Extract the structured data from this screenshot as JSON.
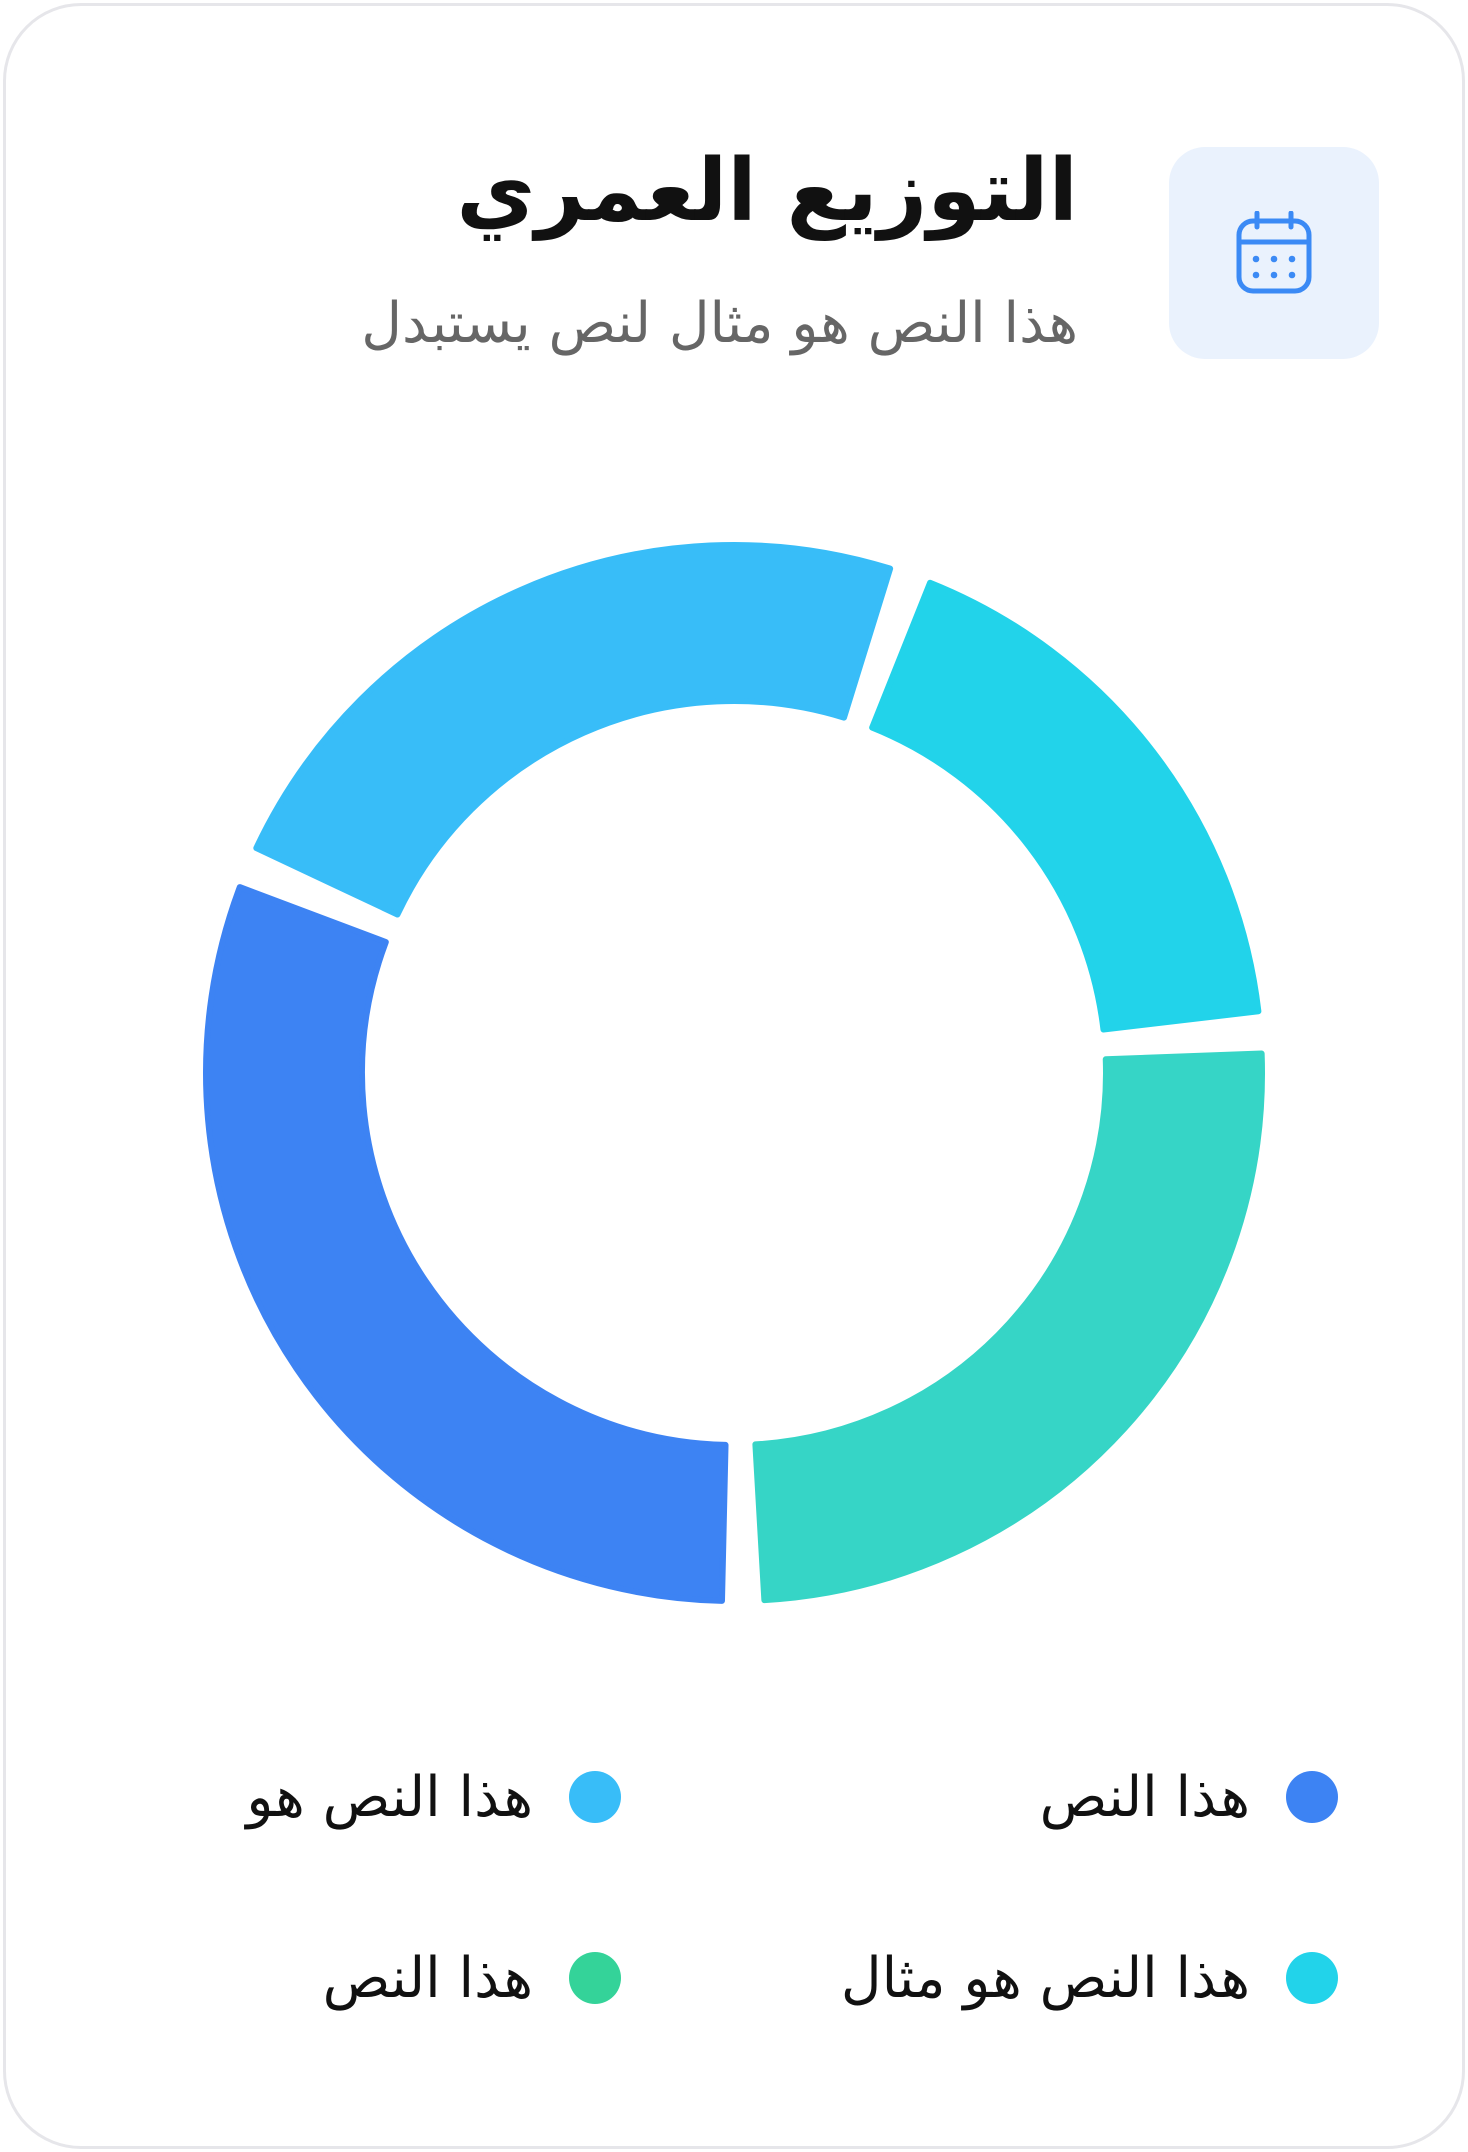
{
  "header": {
    "title": "التوزيع العمري",
    "subtitle": "هذا النص هو مثال لنص يستبدل",
    "icon": "calendar-icon",
    "icon_color": "#3b8af5",
    "icon_bg": "#eaf2fd"
  },
  "chart_data": {
    "type": "pie",
    "variant": "donut",
    "series": [
      {
        "name": "هذا النص هو مثال",
        "value": 18,
        "color": "#22d3ea"
      },
      {
        "name": "هذا النص",
        "value": 26,
        "color": "#36d5c6"
      },
      {
        "name": "هذا النص",
        "value": 32,
        "color": "#3d83f3"
      },
      {
        "name": "هذا النص هو",
        "value": 24,
        "color": "#38bdf8"
      }
    ],
    "legend_position": "bottom"
  },
  "legend": [
    {
      "label": "هذا النص",
      "color": "#3d83f3"
    },
    {
      "label": "هذا النص هو",
      "color": "#38bdf8"
    },
    {
      "label": "هذا النص هو مثال",
      "color": "#22d3ea"
    },
    {
      "label": "هذا النص",
      "color": "#34d399"
    }
  ]
}
